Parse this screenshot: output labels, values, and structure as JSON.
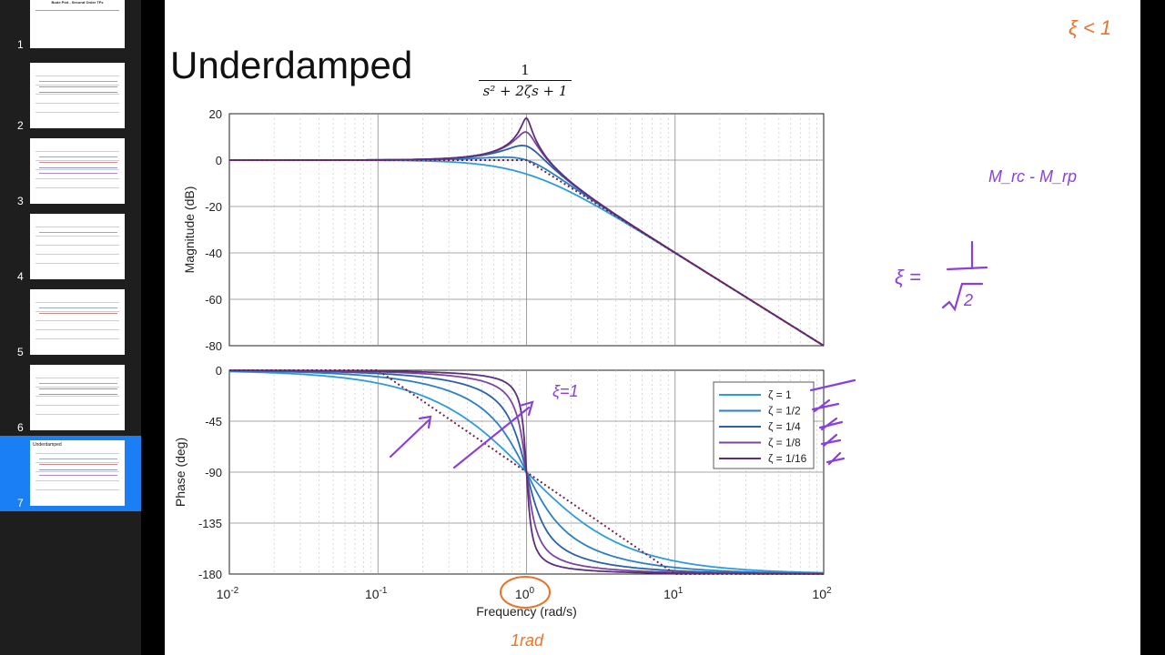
{
  "sidebar": {
    "slides": [
      {
        "number": "1",
        "title": "Bode Plot - Second Order TFs"
      },
      {
        "number": "2"
      },
      {
        "number": "3"
      },
      {
        "number": "4"
      },
      {
        "number": "5"
      },
      {
        "number": "6"
      },
      {
        "number": "7",
        "title": "Underdamped",
        "selected": true
      }
    ]
  },
  "slide": {
    "title": "Underdamped",
    "transfer_function": {
      "numerator": "1",
      "denominator": "s² + 2ζs + 1"
    }
  },
  "chart_data": [
    {
      "type": "line",
      "title": "",
      "xlabel": "",
      "ylabel": "Magnitude (dB)",
      "xscale": "log",
      "xlim": [
        0.01,
        100
      ],
      "ylim": [
        -80,
        20
      ],
      "yticks": [
        20,
        0,
        -20,
        -40,
        -60,
        -80
      ],
      "grid": true,
      "zetas": [
        1,
        0.5,
        0.25,
        0.125,
        0.0625
      ],
      "asymptote": "dotted"
    },
    {
      "type": "line",
      "title": "",
      "xlabel": "Frequency  (rad/s)",
      "ylabel": "Phase (deg)",
      "xscale": "log",
      "xlim": [
        0.01,
        100
      ],
      "ylim": [
        -180,
        0
      ],
      "yticks": [
        0,
        -45,
        -90,
        -135,
        -180
      ],
      "xtick_bases": [
        "10",
        "10",
        "10",
        "10",
        "10"
      ],
      "xtick_exponents": [
        "-2",
        "-1",
        "0",
        "1",
        "2"
      ],
      "grid": true,
      "legend_position": "top-right",
      "series": [
        {
          "name": "ζ = 1",
          "zeta": 1,
          "color": "#2e9bdc"
        },
        {
          "name": "ζ = 1/2",
          "zeta": 0.5,
          "color": "#2b7fc4"
        },
        {
          "name": "ζ = 1/4",
          "zeta": 0.25,
          "color": "#2962a8"
        },
        {
          "name": "ζ = 1/8",
          "zeta": 0.125,
          "color": "#7a479e"
        },
        {
          "name": "ζ = 1/16",
          "zeta": 0.0625,
          "color": "#5c2f7e"
        }
      ],
      "asymptote": "dotted"
    }
  ],
  "annotations": {
    "top_right": "ξ < 1",
    "freq_note": "1rad",
    "zeta_note": "ξ=1",
    "mag_note": "M_rc - M_rp"
  },
  "colors": {
    "selection": "#1a7ef5",
    "sidebar": "#1e1e1e",
    "ink_orange": "#e8742a",
    "ink_purple": "#8a3fe0"
  }
}
